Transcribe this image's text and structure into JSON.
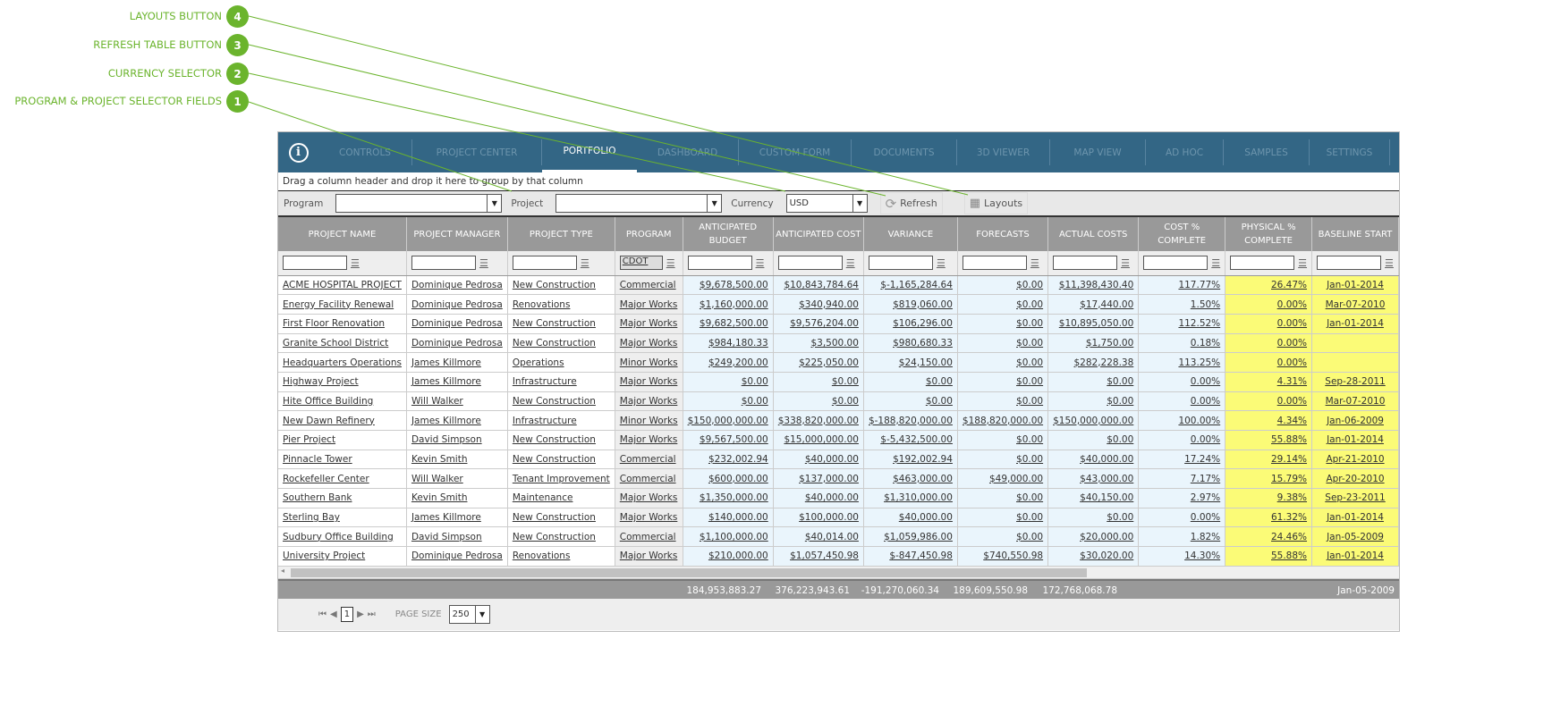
{
  "callouts": [
    {
      "num": "4",
      "label": "LAYOUTS BUTTON"
    },
    {
      "num": "3",
      "label": "REFRESH TABLE BUTTON"
    },
    {
      "num": "2",
      "label": "CURRENCY SELECTOR"
    },
    {
      "num": "1",
      "label": "PROGRAM & PROJECT SELECTOR FIELDS"
    }
  ],
  "nav": {
    "tabs": [
      "CONTROLS",
      "PROJECT CENTER",
      "PORTFOLIO",
      "DASHBOARD",
      "CUSTOM FORM",
      "DOCUMENTS",
      "3D VIEWER",
      "MAP VIEW",
      "AD HOC",
      "SAMPLES",
      "SETTINGS"
    ],
    "active": "PORTFOLIO"
  },
  "group_hint": "Drag a column header and drop it here to group by that column",
  "toolbar": {
    "program_label": "Program",
    "program_value": "",
    "project_label": "Project",
    "project_value": "",
    "currency_label": "Currency",
    "currency_value": "USD",
    "refresh_label": "Refresh",
    "layouts_label": "Layouts"
  },
  "table": {
    "columns": [
      "PROJECT NAME",
      "PROJECT MANAGER",
      "PROJECT TYPE",
      "PROGRAM",
      "ANTICIPATED BUDGET",
      "ANTICIPATED COST",
      "VARIANCE",
      "FORECASTS",
      "ACTUAL COSTS",
      "COST % COMPLETE",
      "PHYSICAL % COMPLETE",
      "BASELINE START"
    ],
    "program_filter": "CDOT",
    "rows": [
      [
        "ACME HOSPITAL PROJECT",
        "Dominique Pedrosa",
        "New Construction",
        "Commercial",
        "$9,678,500.00",
        "$10,843,784.64",
        "$-1,165,284.64",
        "$0.00",
        "$11,398,430.40",
        "117.77%",
        "26.47%",
        "Jan-01-2014"
      ],
      [
        "Energy Facility Renewal",
        "Dominique Pedrosa",
        "Renovations",
        "Major Works",
        "$1,160,000.00",
        "$340,940.00",
        "$819,060.00",
        "$0.00",
        "$17,440.00",
        "1.50%",
        "0.00%",
        "Mar-07-2010"
      ],
      [
        "First Floor Renovation",
        "Dominique Pedrosa",
        "New Construction",
        "Major Works",
        "$9,682,500.00",
        "$9,576,204.00",
        "$106,296.00",
        "$0.00",
        "$10,895,050.00",
        "112.52%",
        "0.00%",
        "Jan-01-2014"
      ],
      [
        "Granite School District",
        "Dominique Pedrosa",
        "New Construction",
        "Major Works",
        "$984,180.33",
        "$3,500.00",
        "$980,680.33",
        "$0.00",
        "$1,750.00",
        "0.18%",
        "0.00%",
        ""
      ],
      [
        "Headquarters Operations",
        "James Killmore",
        "Operations",
        "Minor Works",
        "$249,200.00",
        "$225,050.00",
        "$24,150.00",
        "$0.00",
        "$282,228.38",
        "113.25%",
        "0.00%",
        ""
      ],
      [
        "Highway Project",
        "James Killmore",
        "Infrastructure",
        "Major Works",
        "$0.00",
        "$0.00",
        "$0.00",
        "$0.00",
        "$0.00",
        "0.00%",
        "4.31%",
        "Sep-28-2011"
      ],
      [
        "Hite Office Building",
        "Will Walker",
        "New Construction",
        "Major Works",
        "$0.00",
        "$0.00",
        "$0.00",
        "$0.00",
        "$0.00",
        "0.00%",
        "0.00%",
        "Mar-07-2010"
      ],
      [
        "New Dawn Refinery",
        "James Killmore",
        "Infrastructure",
        "Minor Works",
        "$150,000,000.00",
        "$338,820,000.00",
        "$-188,820,000.00",
        "$188,820,000.00",
        "$150,000,000.00",
        "100.00%",
        "4.34%",
        "Jan-06-2009"
      ],
      [
        "Pier Project",
        "David Simpson",
        "New Construction",
        "Major Works",
        "$9,567,500.00",
        "$15,000,000.00",
        "$-5,432,500.00",
        "$0.00",
        "$0.00",
        "0.00%",
        "55.88%",
        "Jan-01-2014"
      ],
      [
        "Pinnacle Tower",
        "Kevin Smith",
        "New Construction",
        "Commercial",
        "$232,002.94",
        "$40,000.00",
        "$192,002.94",
        "$0.00",
        "$40,000.00",
        "17.24%",
        "29.14%",
        "Apr-21-2010"
      ],
      [
        "Rockefeller Center",
        "Will Walker",
        "Tenant Improvement",
        "Commercial",
        "$600,000.00",
        "$137,000.00",
        "$463,000.00",
        "$49,000.00",
        "$43,000.00",
        "7.17%",
        "15.79%",
        "Apr-20-2010"
      ],
      [
        "Southern Bank",
        "Kevin Smith",
        "Maintenance",
        "Major Works",
        "$1,350,000.00",
        "$40,000.00",
        "$1,310,000.00",
        "$0.00",
        "$40,150.00",
        "2.97%",
        "9.38%",
        "Sep-23-2011"
      ],
      [
        "Sterling Bay",
        "James Killmore",
        "New Construction",
        "Major Works",
        "$140,000.00",
        "$100,000.00",
        "$40,000.00",
        "$0.00",
        "$0.00",
        "0.00%",
        "61.32%",
        "Jan-01-2014"
      ],
      [
        "Sudbury Office Building",
        "David Simpson",
        "New Construction",
        "Commercial",
        "$1,100,000.00",
        "$40,014.00",
        "$1,059,986.00",
        "$0.00",
        "$20,000.00",
        "1.82%",
        "24.46%",
        "Jan-05-2009"
      ],
      [
        "University Project",
        "Dominique Pedrosa",
        "Renovations",
        "Major Works",
        "$210,000.00",
        "$1,057,450.98",
        "$-847,450.98",
        "$740,550.98",
        "$30,020.00",
        "14.30%",
        "55.88%",
        "Jan-01-2014"
      ]
    ],
    "totals": [
      "184,953,883.27",
      "376,223,943.61",
      "-191,270,060.34",
      "189,609,550.98",
      "172,768,068.78",
      "Jan-05-2009"
    ]
  },
  "pager": {
    "page": "1",
    "page_size_label": "PAGE SIZE",
    "page_size": "250"
  },
  "colors": {
    "nav": "#336685",
    "callout": "#6bb42d",
    "highlight": "#fbfb77"
  }
}
